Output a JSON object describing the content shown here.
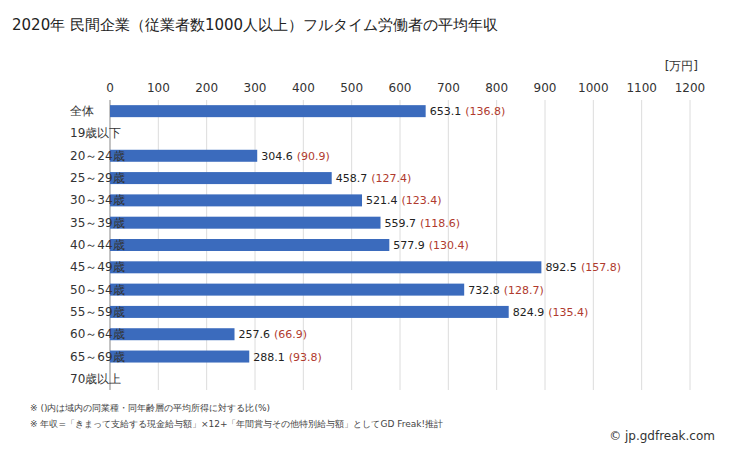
{
  "chart_data": {
    "type": "bar",
    "orientation": "horizontal",
    "title": "2020年 民間企業（従業者数1000人以上）フルタイム労働者の平均年収",
    "unit_label": "[万円]",
    "categories": [
      "全体",
      "19歳以下",
      "20～24歳",
      "25～29歳",
      "30～34歳",
      "35～39歳",
      "40～44歳",
      "45～49歳",
      "50～54歳",
      "55～59歳",
      "60～64歳",
      "65～69歳",
      "70歳以上"
    ],
    "values": [
      653.1,
      null,
      304.6,
      458.7,
      521.4,
      559.7,
      577.9,
      892.5,
      732.8,
      824.9,
      257.6,
      288.1,
      null
    ],
    "ratio_labels": [
      "(136.8)",
      null,
      "(90.9)",
      "(127.4)",
      "(123.4)",
      "(118.6)",
      "(130.4)",
      "(157.8)",
      "(128.7)",
      "(135.4)",
      "(66.9)",
      "(93.8)",
      null
    ],
    "color": "#3b6bbd",
    "xlim": [
      0,
      1200
    ],
    "xticks": [
      0,
      100,
      200,
      300,
      400,
      500,
      600,
      700,
      800,
      900,
      1000,
      1100,
      1200
    ],
    "grid": true,
    "data_labels": true,
    "notes": [
      "※ ()内は域内の同業種・同年齢層の平均所得に対する比(%)",
      "※ 年収=「きまって支給する現金給与額」×12+「年間賞与その他特別給与額」としてGD Freak!推計"
    ],
    "source": "© jp.gdfreak.com"
  }
}
